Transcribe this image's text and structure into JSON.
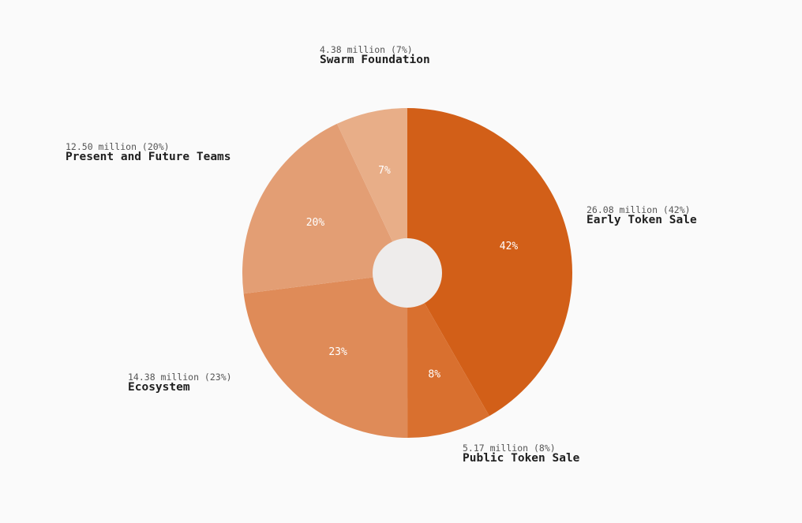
{
  "chart_data": {
    "type": "pie",
    "donut": true,
    "series": [
      {
        "slices": [
          {
            "label": "Early Token Sale",
            "value": 26.08,
            "amount_text": "26.08 million (42%)",
            "pct_text": "42%",
            "color": "#d25f18"
          },
          {
            "label": "Public Token Sale",
            "value": 5.17,
            "amount_text": "5.17 million (8%)",
            "pct_text": "8%",
            "color": "#d9702f"
          },
          {
            "label": "Ecosystem",
            "value": 14.38,
            "amount_text": "14.38 million (23%)",
            "pct_text": "23%",
            "color": "#df8b58"
          },
          {
            "label": "Present and Future Teams",
            "value": 12.5,
            "amount_text": "12.50 million (20%)",
            "pct_text": "20%",
            "color": "#e39e74"
          },
          {
            "label": "Swarm Foundation",
            "value": 4.38,
            "amount_text": "4.38 million (7%)",
            "pct_text": "7%",
            "color": "#e8ae88"
          }
        ]
      }
    ],
    "center_hole_color": "#eeeceb",
    "legend": "none"
  }
}
